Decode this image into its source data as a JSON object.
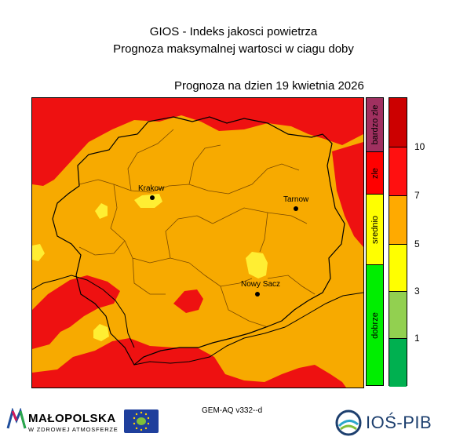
{
  "header": {
    "title": "GIOS - Indeks jakosci powietrza",
    "subtitle": "Prognoza maksymalnej wartosci w ciagu doby",
    "forecast_date": "Prognoza na dzien  19 kwietnia 2026"
  },
  "map": {
    "region": "Małopolska",
    "cities": [
      {
        "name": "Krakow"
      },
      {
        "name": "Tarnow"
      },
      {
        "name": "Nowy Sacz"
      }
    ],
    "colors": {
      "background_level": "#f7aa00",
      "high_level": "#ee1111",
      "moderate_level": "#ffee33",
      "borders": "#000000",
      "district_borders": "#7a4a00"
    }
  },
  "legend": {
    "categories": [
      {
        "label": "bardzo zle",
        "color": "#a03060"
      },
      {
        "label": "zle",
        "color": "#ff0000"
      },
      {
        "label": "srednio",
        "color": "#ffff00"
      },
      {
        "label": "dobrze",
        "color": "#00ee00"
      }
    ],
    "scale": [
      {
        "color": "#cc0000"
      },
      {
        "color": "#ff1010"
      },
      {
        "color": "#ffaa00"
      },
      {
        "color": "#ffff00"
      },
      {
        "color": "#92d050"
      },
      {
        "color": "#00b050"
      }
    ],
    "ticks": [
      "10",
      "7",
      "5",
      "3",
      "1"
    ]
  },
  "footer": {
    "model": "GEM-AQ v332--d",
    "malopolska_name": "MAŁOPOLSKA",
    "malopolska_tagline": "W ZDROWEJ ATMOSFERZE",
    "eu_life_logo": "life-logo",
    "institute": "IOŚ-PIB"
  }
}
